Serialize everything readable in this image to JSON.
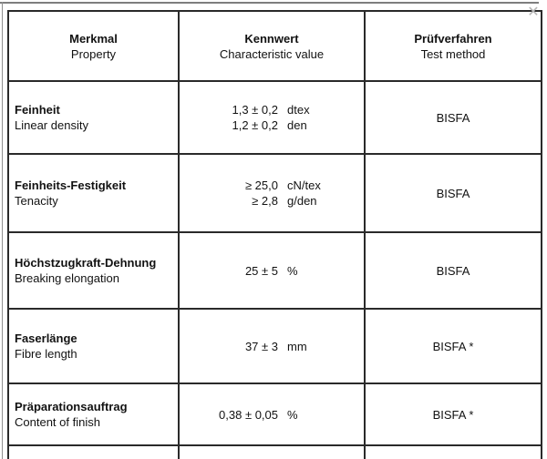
{
  "icons": {
    "close": "✕"
  },
  "colors": {
    "border": "#2a2a2a",
    "frame_line": "#7e7e7e",
    "close_icon": "#b5b5b5",
    "text": "#121212",
    "background": "#ffffff"
  },
  "table": {
    "header": {
      "col1": {
        "de": "Merkmal",
        "en": "Property"
      },
      "col2": {
        "de": "Kennwert",
        "en": "Characteristic value"
      },
      "col3": {
        "de": "Prüfverfahren",
        "en": "Test method"
      }
    },
    "rows": [
      {
        "de": "Feinheit",
        "en": "Linear density",
        "values": [
          {
            "value": "1,3 ± 0,2",
            "unit": "dtex"
          },
          {
            "value": "1,2 ± 0,2",
            "unit": "den"
          }
        ],
        "method": "BISFA"
      },
      {
        "de": "Feinheits-Festigkeit",
        "en": "Tenacity",
        "values": [
          {
            "value": "≥ 25,0",
            "unit": "cN/tex"
          },
          {
            "value": "≥ 2,8",
            "unit": "g/den"
          }
        ],
        "method": "BISFA"
      },
      {
        "de": "Höchstzugkraft-Dehnung",
        "en": "Breaking elongation",
        "values": [
          {
            "value": "25 ± 5",
            "unit": "%"
          }
        ],
        "method": "BISFA"
      },
      {
        "de": "Faserlänge",
        "en": "Fibre length",
        "values": [
          {
            "value": "37 ± 3",
            "unit": "mm"
          }
        ],
        "method": "BISFA *"
      },
      {
        "de": "Präparationsauftrag",
        "en": "Content of finish",
        "values": [
          {
            "value": "0,38 ± 0,05",
            "unit": "%"
          }
        ],
        "method": "BISFA *"
      }
    ]
  }
}
